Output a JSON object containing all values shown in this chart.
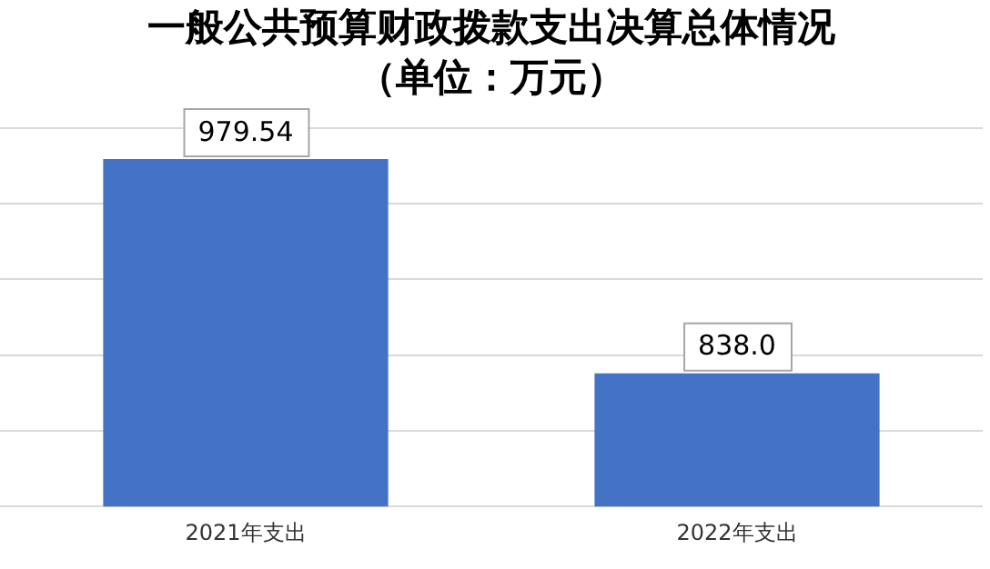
{
  "chart_data": {
    "type": "bar",
    "title": "一般公共预算财政拨款支出决算总体情况",
    "subtitle": "（单位：万元）",
    "categories": [
      "2021年支出",
      "2022年支出"
    ],
    "values": [
      979.54,
      838.0
    ],
    "value_labels": [
      "979.54",
      "838.0"
    ],
    "color": "#4472c4",
    "ylim": [
      750,
      1000
    ],
    "yticks": [
      {
        "value": 750,
        "label": null
      },
      {
        "value": 800,
        "label": null
      },
      {
        "value": 850,
        "label": null
      },
      {
        "value": 900,
        "label": null
      },
      {
        "value": 950,
        "label": null
      },
      {
        "value": 1000,
        "label": null
      }
    ],
    "tick_labels": "x",
    "grid": "y",
    "legend": false
  }
}
